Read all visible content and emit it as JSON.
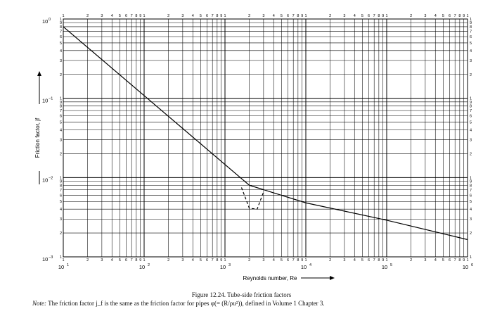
{
  "chart_data": {
    "type": "line",
    "xlabel": "Reynolds number, Re",
    "ylabel": "Friction factor, jf",
    "x_scale": "log",
    "y_scale": "log",
    "xlim": [
      10,
      1000000
    ],
    "ylim": [
      0.001,
      1
    ],
    "grid": true,
    "x_major_tick_labels": [
      "10",
      "10",
      "10",
      "10",
      "10",
      "10"
    ],
    "x_major_tick_exponents": [
      "1",
      "2",
      "3",
      "4",
      "5",
      "6"
    ],
    "y_major_tick_labels": [
      "10",
      "10",
      "10",
      "10"
    ],
    "y_major_tick_exponents": [
      "0",
      "−1",
      "−2",
      "−3"
    ],
    "minor_tick_labels": [
      "1",
      "2",
      "3",
      "4",
      "5",
      "6",
      "7",
      "8",
      "9"
    ],
    "series": [
      {
        "style": "solid",
        "x": [
          10,
          2000
        ],
        "y": [
          0.8,
          0.008
        ]
      },
      {
        "style": "solid",
        "x": [
          2000,
          10000,
          100000,
          1000000
        ],
        "y": [
          0.008,
          0.0048,
          0.0029,
          0.00165
        ]
      },
      {
        "style": "dashed",
        "x": [
          1600,
          2000,
          2500,
          3000
        ],
        "y": [
          0.0075,
          0.0041,
          0.004,
          0.0066
        ]
      }
    ]
  },
  "caption": {
    "title": "Figure 12.24.   Tube-side friction factors",
    "note_label": "Note:",
    "note_text": " The friction factor j_f is the same as the friction factor for pipes φ(= (R/ρu²)), defined in Volume 1 Chapter 3."
  }
}
